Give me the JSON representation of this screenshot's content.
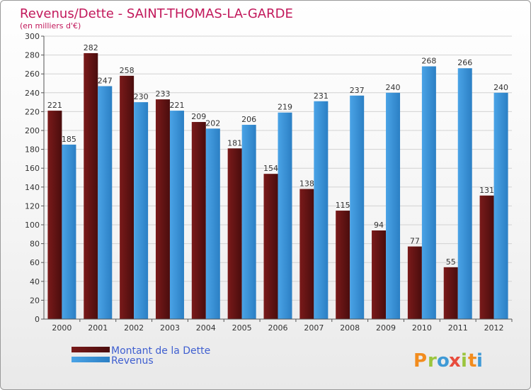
{
  "chart_data": {
    "type": "bar",
    "title": "Revenus/Dette - SAINT-THOMAS-LA-GARDE",
    "subtitle": "(en milliers d'€)",
    "categories": [
      "2000",
      "2001",
      "2002",
      "2003",
      "2004",
      "2005",
      "2006",
      "2007",
      "2008",
      "2009",
      "2010",
      "2011",
      "2012"
    ],
    "series": [
      {
        "name": "Montant de la Dette",
        "color": "#7a1a1a",
        "values": [
          221,
          282,
          258,
          233,
          209,
          181,
          154,
          138,
          115,
          94,
          77,
          55,
          131
        ]
      },
      {
        "name": "Revenus",
        "color": "#4aa3e6",
        "values": [
          185,
          247,
          230,
          221,
          202,
          206,
          219,
          231,
          237,
          240,
          268,
          266,
          240
        ]
      }
    ],
    "ylim": [
      0,
      300
    ],
    "yticks": [
      0,
      20,
      40,
      60,
      80,
      100,
      120,
      140,
      160,
      180,
      200,
      220,
      240,
      260,
      280,
      300
    ],
    "grid": true,
    "legend": "bottom-left"
  },
  "branding": {
    "logo_letters": [
      "P",
      "r",
      "o",
      "x",
      "i",
      "t",
      "i"
    ],
    "logo_colors": [
      "#f28c1e",
      "#9bc53d",
      "#3f9ad6",
      "#e84c3d",
      "#9bc53d",
      "#f28c1e",
      "#3f9ad6"
    ]
  }
}
